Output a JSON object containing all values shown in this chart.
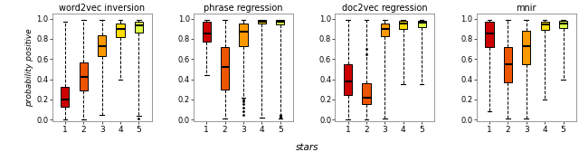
{
  "titles": [
    "word2vec inversion",
    "phrase regression",
    "doc2vec regression",
    "mnir"
  ],
  "ylabel": "probability positive",
  "xlabel": "stars",
  "colors": [
    "#CC0000",
    "#EE5500",
    "#FF9900",
    "#FFDD00",
    "#DDFF44"
  ],
  "panels": [
    {
      "name": "word2vec inversion",
      "boxes": [
        {
          "q1": 0.13,
          "median": 0.2,
          "q3": 0.32,
          "whislo": 0.0,
          "whishi": 0.97,
          "fliers": []
        },
        {
          "q1": 0.29,
          "median": 0.42,
          "q3": 0.57,
          "whislo": 0.0,
          "whishi": 0.99,
          "fliers": []
        },
        {
          "q1": 0.63,
          "median": 0.73,
          "q3": 0.84,
          "whislo": 0.05,
          "whishi": 0.99,
          "fliers": []
        },
        {
          "q1": 0.82,
          "median": 0.9,
          "q3": 0.95,
          "whislo": 0.4,
          "whishi": 0.99,
          "fliers": []
        },
        {
          "q1": 0.86,
          "median": 0.93,
          "q3": 0.97,
          "whislo": 0.04,
          "whishi": 0.99,
          "fliers": [
            0.01
          ]
        }
      ]
    },
    {
      "name": "phrase regression",
      "boxes": [
        {
          "q1": 0.77,
          "median": 0.85,
          "q3": 0.97,
          "whislo": 0.44,
          "whishi": 0.99,
          "fliers": []
        },
        {
          "q1": 0.3,
          "median": 0.52,
          "q3": 0.72,
          "whislo": 0.01,
          "whishi": 0.99,
          "fliers": []
        },
        {
          "q1": 0.73,
          "median": 0.87,
          "q3": 0.95,
          "whislo": 0.22,
          "whishi": 0.99,
          "fliers": [
            0.05,
            0.08,
            0.12,
            0.15,
            0.18,
            0.2
          ]
        },
        {
          "q1": 0.95,
          "median": 0.97,
          "q3": 0.99,
          "whislo": 0.02,
          "whishi": 0.99,
          "fliers": []
        },
        {
          "q1": 0.94,
          "median": 0.97,
          "q3": 0.99,
          "whislo": 0.01,
          "whishi": 0.99,
          "fliers": [
            0.02,
            0.03,
            0.04,
            0.05
          ]
        }
      ]
    },
    {
      "name": "doc2vec regression",
      "boxes": [
        {
          "q1": 0.24,
          "median": 0.38,
          "q3": 0.55,
          "whislo": 0.0,
          "whishi": 0.99,
          "fliers": []
        },
        {
          "q1": 0.15,
          "median": 0.22,
          "q3": 0.36,
          "whislo": 0.0,
          "whishi": 0.99,
          "fliers": [
            0.65,
            0.7
          ]
        },
        {
          "q1": 0.83,
          "median": 0.9,
          "q3": 0.95,
          "whislo": 0.01,
          "whishi": 0.99,
          "fliers": []
        },
        {
          "q1": 0.9,
          "median": 0.95,
          "q3": 0.98,
          "whislo": 0.35,
          "whishi": 0.99,
          "fliers": []
        },
        {
          "q1": 0.92,
          "median": 0.96,
          "q3": 0.98,
          "whislo": 0.35,
          "whishi": 0.99,
          "fliers": []
        }
      ]
    },
    {
      "name": "mnir",
      "boxes": [
        {
          "q1": 0.72,
          "median": 0.85,
          "q3": 0.97,
          "whislo": 0.08,
          "whishi": 0.99,
          "fliers": []
        },
        {
          "q1": 0.37,
          "median": 0.55,
          "q3": 0.72,
          "whislo": 0.01,
          "whishi": 0.99,
          "fliers": []
        },
        {
          "q1": 0.55,
          "median": 0.73,
          "q3": 0.88,
          "whislo": 0.01,
          "whishi": 0.99,
          "fliers": []
        },
        {
          "q1": 0.89,
          "median": 0.94,
          "q3": 0.97,
          "whislo": 0.2,
          "whishi": 0.99,
          "fliers": []
        },
        {
          "q1": 0.91,
          "median": 0.95,
          "q3": 0.98,
          "whislo": 0.4,
          "whishi": 0.99,
          "fliers": []
        }
      ]
    }
  ],
  "ylim": [
    -0.02,
    1.05
  ],
  "yticks": [
    0.0,
    0.2,
    0.4,
    0.6,
    0.8,
    1.0
  ],
  "ytick_labels": [
    "0.0",
    "0.2",
    "0.4",
    "0.6",
    "0.8",
    "1.0"
  ]
}
